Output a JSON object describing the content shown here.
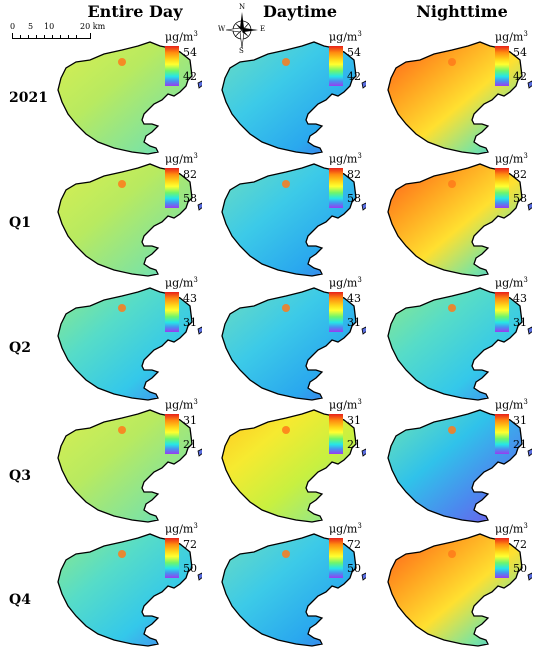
{
  "columns": [
    "Entire Day",
    "Daytime",
    "Nighttime"
  ],
  "rows": [
    {
      "label": "2021",
      "max": "54",
      "min": "42",
      "maps": [
        {
          "palette": "avg-warm"
        },
        {
          "palette": "day-cool"
        },
        {
          "palette": "night-hot"
        }
      ]
    },
    {
      "label": "Q1",
      "max": "82",
      "min": "58",
      "maps": [
        {
          "palette": "avg-warm"
        },
        {
          "palette": "day-cool"
        },
        {
          "palette": "night-hot"
        }
      ]
    },
    {
      "label": "Q2",
      "max": "43",
      "min": "31",
      "maps": [
        {
          "palette": "avg-cool"
        },
        {
          "palette": "day-cool"
        },
        {
          "palette": "avg-cool"
        }
      ]
    },
    {
      "label": "Q3",
      "max": "31",
      "min": "21",
      "maps": [
        {
          "palette": "avg-warm"
        },
        {
          "palette": "day-hot"
        },
        {
          "palette": "night-cool"
        }
      ]
    },
    {
      "label": "Q4",
      "max": "72",
      "min": "50",
      "maps": [
        {
          "palette": "avg-cool"
        },
        {
          "palette": "day-cool"
        },
        {
          "palette": "night-hot"
        }
      ]
    }
  ],
  "legend": {
    "unit_base": "μg/m",
    "unit_exp": "3"
  },
  "scalebar": {
    "ticks": [
      "0",
      "5",
      "10",
      "20 km"
    ]
  },
  "compass": {
    "n": "N",
    "s": "S",
    "e": "E",
    "w": "W"
  },
  "colors": {
    "high": "#e8201a",
    "mid": "#ffff30",
    "low": "#9a3cf0",
    "outline": "#000000"
  }
}
